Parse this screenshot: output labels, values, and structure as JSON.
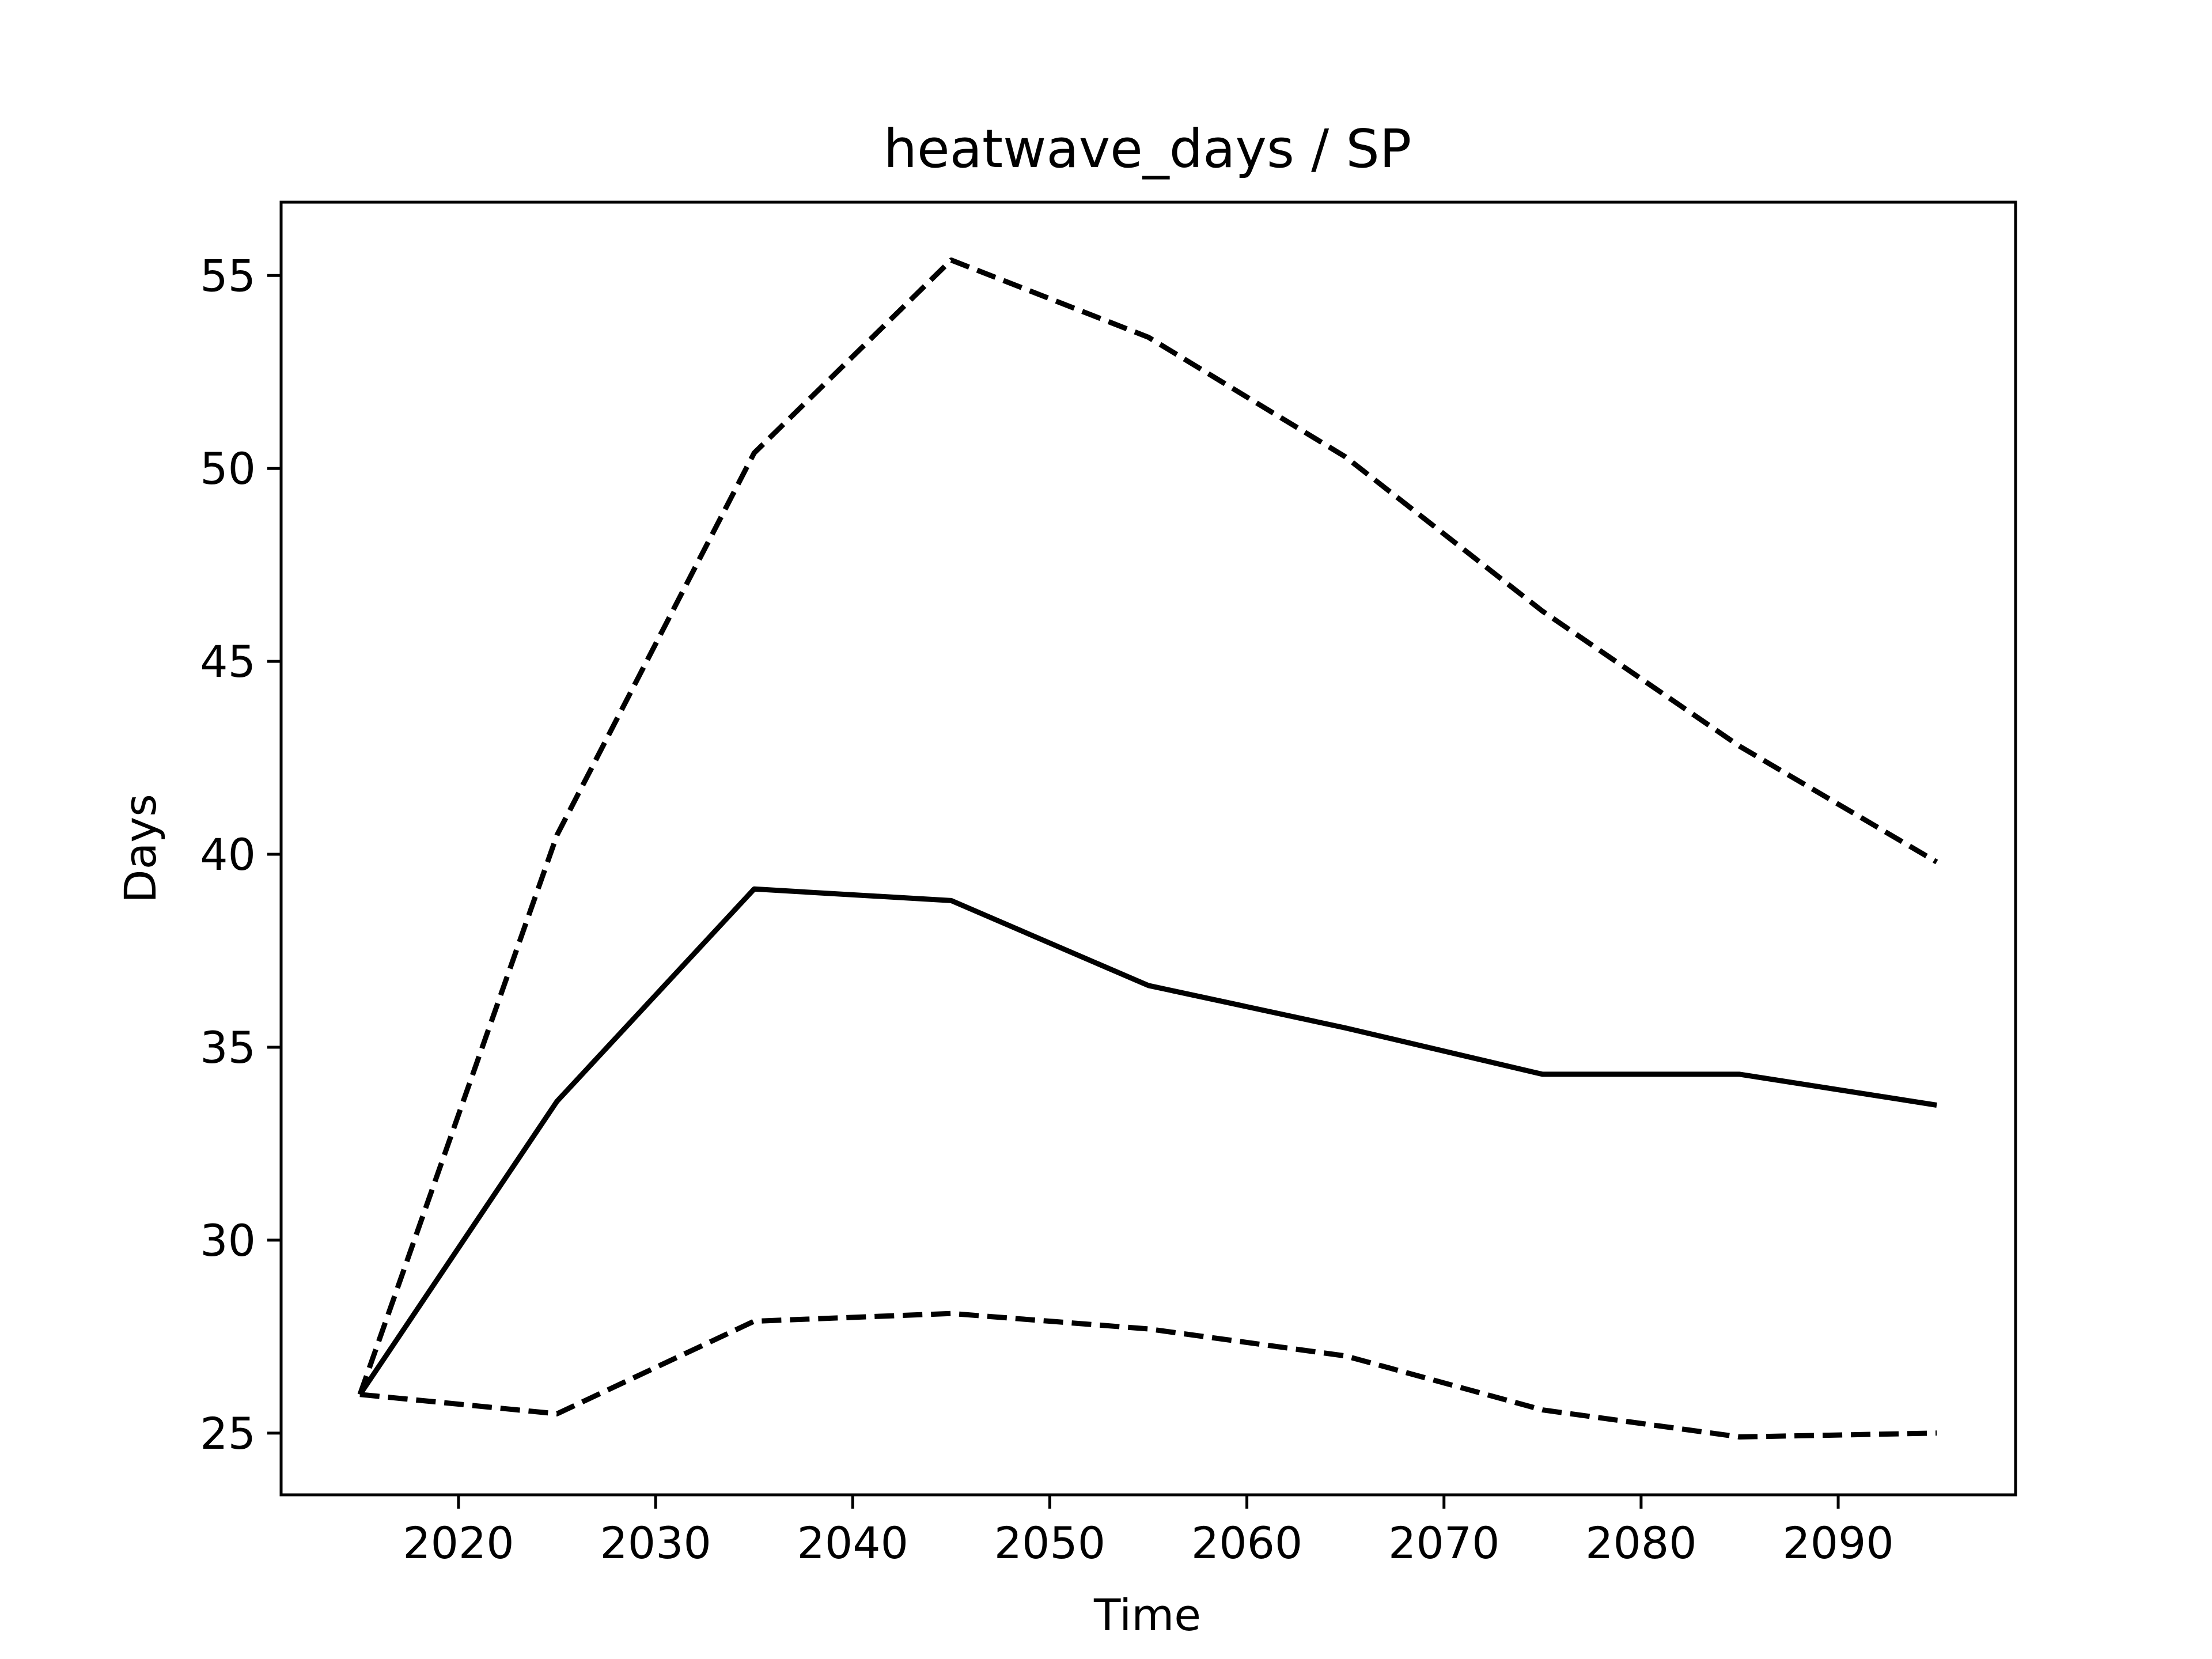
{
  "chart_data": {
    "type": "line",
    "title": "heatwave_days / SP",
    "xlabel": "Time",
    "ylabel": "Days",
    "xlim": [
      2011,
      2099
    ],
    "ylim": [
      23.4,
      56.9
    ],
    "xticks": [
      2020,
      2030,
      2040,
      2050,
      2060,
      2070,
      2080,
      2090
    ],
    "yticks": [
      25,
      30,
      35,
      40,
      45,
      50,
      55
    ],
    "grid": false,
    "legend": null,
    "x": [
      2015,
      2025,
      2035,
      2045,
      2055,
      2065,
      2075,
      2085,
      2095
    ],
    "series": [
      {
        "style": "solid",
        "color": "#000000",
        "values": [
          26.0,
          33.6,
          39.1,
          38.8,
          36.6,
          35.5,
          34.3,
          34.3,
          33.5
        ]
      },
      {
        "style": "dashed",
        "color": "#000000",
        "values": [
          26.0,
          40.5,
          50.4,
          55.4,
          53.4,
          50.3,
          46.3,
          42.8,
          39.8
        ]
      },
      {
        "style": "dashed",
        "color": "#000000",
        "values": [
          26.0,
          25.5,
          27.9,
          28.1,
          27.7,
          27.0,
          25.6,
          24.9,
          25.0
        ]
      }
    ]
  }
}
